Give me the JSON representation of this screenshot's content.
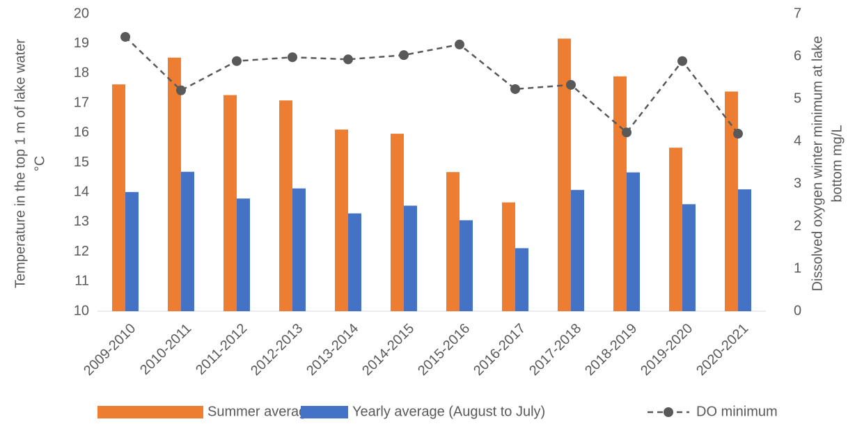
{
  "chart_data": {
    "type": "bar",
    "y_label": [
      "Temperature in the top 1 m of lake water",
      "°C"
    ],
    "y2_label": [
      "Dissolved oxygen winter minimum at lake",
      "bottom mg/L"
    ],
    "categories": [
      "2009-2010",
      "2010-2011",
      "2011-2012",
      "2012-2013",
      "2013-2014",
      "2014-2015",
      "2015-2016",
      "2016-2017",
      "2017-2018",
      "2018-2019",
      "2019-2020",
      "2020-2021"
    ],
    "series": [
      {
        "name": "Summer average",
        "color": "#ed7d31",
        "values": [
          17.63,
          18.53,
          17.27,
          17.09,
          16.11,
          15.97,
          14.68,
          13.66,
          19.17,
          17.9,
          15.5,
          17.39
        ]
      },
      {
        "name": "Yearly average (August to July)",
        "color": "#4472c4",
        "values": [
          14.01,
          14.69,
          13.79,
          14.13,
          13.29,
          13.55,
          13.06,
          12.12,
          14.08,
          14.67,
          13.6,
          14.1
        ]
      },
      {
        "name": "DO minimum",
        "color": "#595959",
        "type": "line",
        "dashed": true,
        "axis": "y2",
        "values": [
          6.46,
          5.2,
          5.89,
          5.98,
          5.93,
          6.03,
          6.28,
          5.23,
          5.33,
          4.21,
          5.89,
          4.18
        ]
      }
    ],
    "ylim": [
      10,
      20
    ],
    "yticks": [
      10,
      11,
      12,
      13,
      14,
      15,
      16,
      17,
      18,
      19,
      20
    ],
    "y2lim": [
      0,
      7
    ],
    "y2ticks": [
      0,
      1,
      2,
      3,
      4,
      5,
      6,
      7
    ],
    "grid": false,
    "legend": "bottom"
  }
}
